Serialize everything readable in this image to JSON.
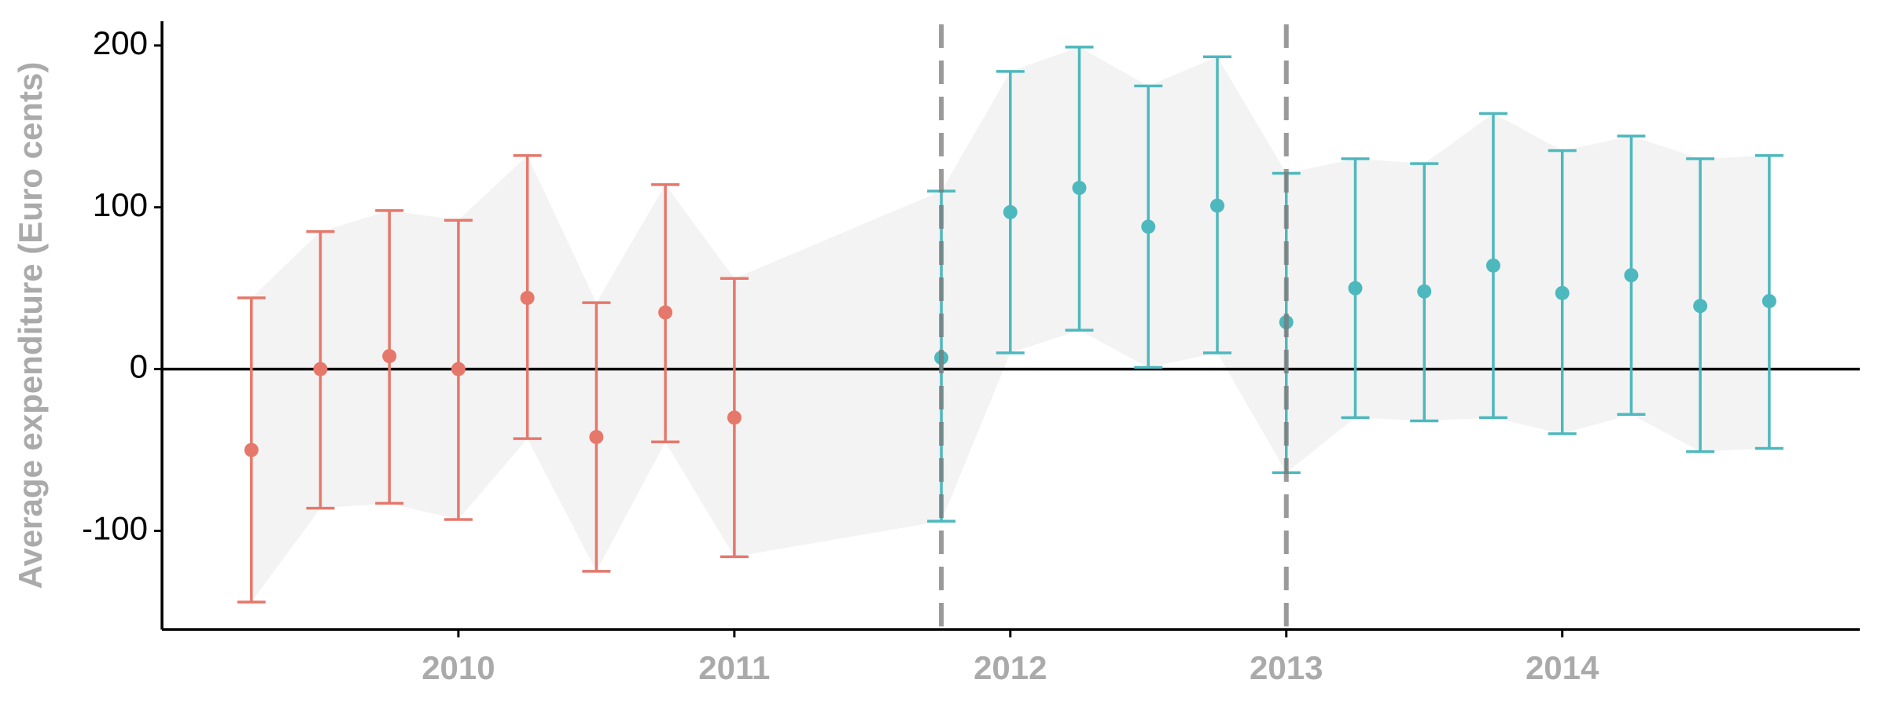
{
  "chart_data": {
    "type": "errorbar",
    "y_label": "Average expenditure (Euro cents)",
    "xlim": [
      2008.926,
      2015.078
    ],
    "ylim": [
      -161,
      215
    ],
    "xticks": [
      2010,
      2011,
      2012,
      2013,
      2014
    ],
    "yticks": [
      -100,
      0,
      100,
      200
    ],
    "vlines": [
      2011.75,
      2013
    ],
    "hline": 0,
    "ribbon_color": "#f3f3f3",
    "series": [
      {
        "color": "#e5786b",
        "x": [
          2009.25,
          2009.5,
          2009.75,
          2010,
          2010.25,
          2010.5,
          2010.75,
          2011
        ],
        "values": [
          -50,
          0,
          8,
          0,
          44,
          -42,
          35,
          -30
        ],
        "lower": [
          -144,
          -86,
          -83,
          -93,
          -43,
          -125,
          -45,
          -116
        ],
        "upper": [
          44,
          85,
          98,
          92,
          132,
          41,
          114,
          56
        ]
      },
      {
        "color": "#4db8bd",
        "x": [
          2011.75,
          2012,
          2012.25,
          2012.5,
          2012.75,
          2013,
          2013.25,
          2013.5,
          2013.75,
          2014,
          2014.25,
          2014.5,
          2014.75
        ],
        "values": [
          7,
          97,
          112,
          88,
          101,
          29,
          50,
          48,
          64,
          47,
          58,
          39,
          42
        ],
        "lower": [
          -94,
          10,
          24,
          1,
          10,
          -64,
          -30,
          -32,
          -30,
          -40,
          -28,
          -51,
          -49
        ],
        "upper": [
          110,
          184,
          199,
          175,
          193,
          121,
          130,
          127,
          158,
          135,
          144,
          130,
          132
        ]
      }
    ]
  }
}
